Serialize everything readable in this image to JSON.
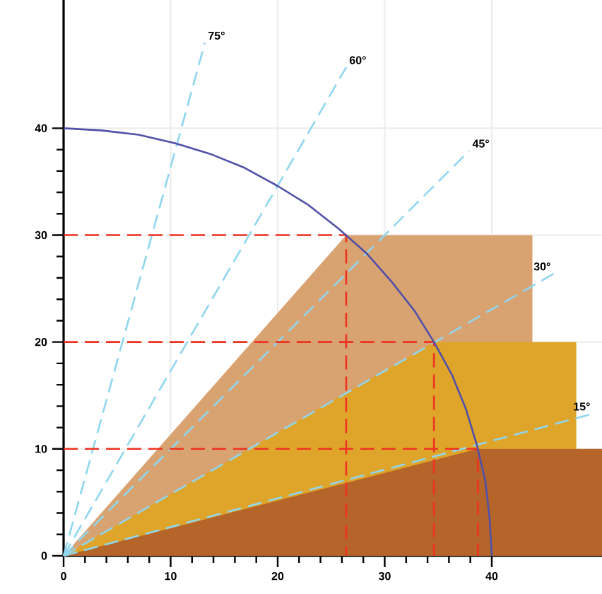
{
  "chart_data": {
    "type": "line",
    "xlim": [
      0,
      50.3
    ],
    "ylim": [
      0,
      52
    ],
    "xticks": [
      0,
      10,
      20,
      30,
      40
    ],
    "yticks": [
      0,
      10,
      20,
      30,
      40
    ],
    "grid": true,
    "series": [
      {
        "type": "area",
        "color": "#d9a271",
        "x": [
          0,
          26.4,
          43.8
        ],
        "values": [
          0,
          30,
          30
        ]
      },
      {
        "type": "area",
        "color": "#dfa52a",
        "x": [
          0,
          34.6,
          47.9
        ],
        "values": [
          0,
          20,
          20
        ]
      },
      {
        "type": "area",
        "color": "#b5642a",
        "x": [
          0,
          38.7,
          50.3
        ],
        "values": [
          0,
          10,
          10
        ]
      },
      {
        "name": "75°",
        "color": "#8fd6ee",
        "line_style": "dashed",
        "x": [
          0,
          13.2
        ],
        "values": [
          0,
          48.0
        ]
      },
      {
        "name": "60°",
        "color": "#8fd6ee",
        "line_style": "dashed",
        "x": [
          0,
          26.4
        ],
        "values": [
          0,
          45.7
        ]
      },
      {
        "name": "45°",
        "color": "#8fd6ee",
        "line_style": "dashed",
        "x": [
          0,
          37.9
        ],
        "values": [
          0,
          37.9
        ]
      },
      {
        "name": "30°",
        "color": "#8fd6ee",
        "line_style": "dashed",
        "x": [
          0,
          45.8
        ],
        "values": [
          0,
          26.4
        ]
      },
      {
        "name": "15°",
        "color": "#8fd6ee",
        "line_style": "dashed",
        "x": [
          0,
          49.5
        ],
        "values": [
          0,
          13.3
        ]
      },
      {
        "color": "#ee3322",
        "line_style": "dashed",
        "x": [
          0,
          26.4,
          26.4
        ],
        "values": [
          30,
          30,
          0
        ]
      },
      {
        "color": "#ee3322",
        "line_style": "dashed",
        "x": [
          0,
          34.6,
          34.6
        ],
        "values": [
          20,
          20,
          0
        ]
      },
      {
        "color": "#ee3322",
        "line_style": "dashed",
        "x": [
          0,
          38.7,
          38.7
        ],
        "values": [
          10,
          10,
          0
        ]
      },
      {
        "color": "#5050a8",
        "line_style": "solid",
        "x": [
          40,
          39.8,
          39.4,
          38.6,
          37.6,
          36.3,
          34.6,
          32.8,
          30.6,
          28.3,
          25.7,
          22.9,
          20,
          16.9,
          13.7,
          10.4,
          7,
          3.5,
          0
        ],
        "values": [
          0,
          3.5,
          7,
          10.4,
          13.7,
          16.9,
          20,
          22.9,
          25.7,
          28.3,
          30.6,
          32.8,
          34.6,
          36.3,
          37.6,
          38.6,
          39.4,
          39.8,
          40
        ]
      }
    ]
  }
}
